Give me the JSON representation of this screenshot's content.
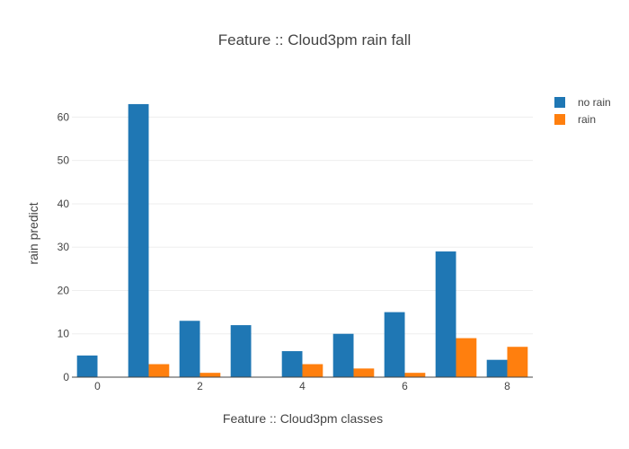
{
  "chart_data": {
    "type": "bar",
    "title": "Feature :: Cloud3pm rain fall",
    "xlabel": "Feature :: Cloud3pm classes",
    "ylabel": "rain predict",
    "x": [
      0,
      1,
      2,
      3,
      4,
      5,
      6,
      7,
      8
    ],
    "xticks": [
      0,
      2,
      4,
      6,
      8
    ],
    "yticks": [
      0,
      10,
      20,
      30,
      40,
      50,
      60
    ],
    "xlim": [
      -0.5,
      8.5
    ],
    "ylim": [
      0,
      66.3
    ],
    "grid": true,
    "legend_position": "top-right",
    "series": [
      {
        "name": "no rain",
        "color": "#1f77b4",
        "values": [
          5,
          63,
          13,
          12,
          6,
          10,
          15,
          29,
          4
        ]
      },
      {
        "name": "rain",
        "color": "#ff7f0e",
        "values": [
          0,
          3,
          1,
          0,
          3,
          2,
          1,
          9,
          7
        ]
      }
    ]
  }
}
